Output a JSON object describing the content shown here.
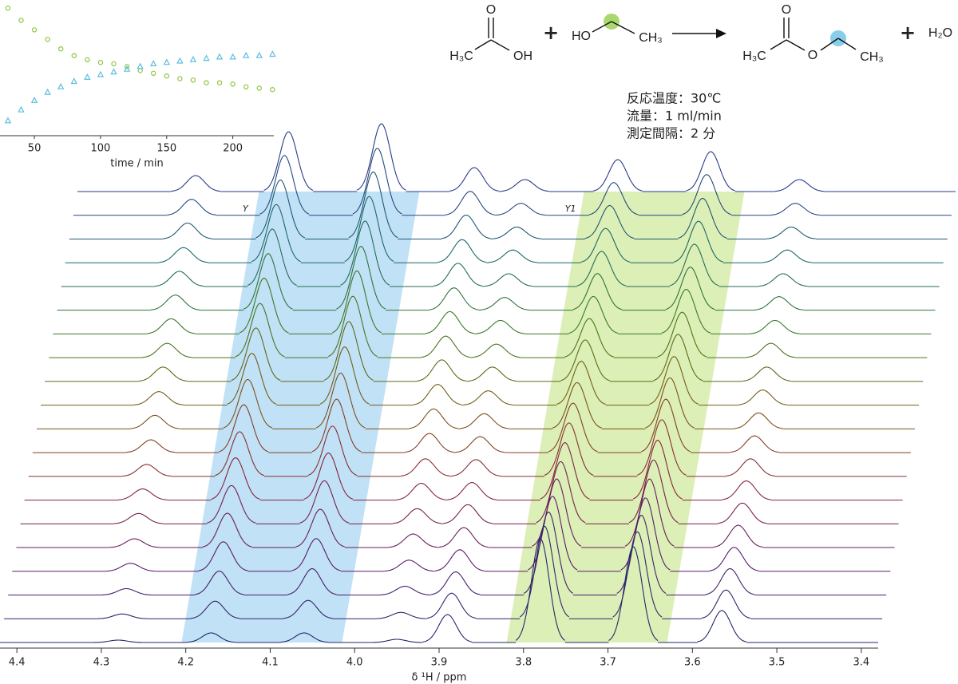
{
  "chart_data": [
    {
      "type": "scatter",
      "xlabel": "time / min",
      "xlim": [
        24,
        231
      ],
      "xticks": [
        50,
        100,
        150,
        200
      ],
      "ylim": [
        0,
        1
      ],
      "x": [
        30,
        40,
        50,
        60,
        70,
        80,
        90,
        100,
        110,
        120,
        130,
        140,
        150,
        160,
        170,
        180,
        190,
        200,
        210,
        220,
        230
      ],
      "series": [
        {
          "color": "#8dc63f",
          "marker": "circle",
          "values": [
            0.94,
            0.85,
            0.78,
            0.71,
            0.64,
            0.59,
            0.56,
            0.54,
            0.53,
            0.51,
            0.48,
            0.46,
            0.44,
            0.42,
            0.41,
            0.39,
            0.39,
            0.38,
            0.36,
            0.35,
            0.34
          ]
        },
        {
          "color": "#5bbde0",
          "marker": "triangle",
          "values": [
            0.11,
            0.19,
            0.26,
            0.32,
            0.36,
            0.4,
            0.43,
            0.45,
            0.47,
            0.49,
            0.51,
            0.53,
            0.54,
            0.55,
            0.56,
            0.57,
            0.58,
            0.58,
            0.59,
            0.59,
            0.6
          ]
        }
      ]
    },
    {
      "type": "waterfall",
      "xlabel": "δ ¹H / ppm",
      "xlim": [
        4.42,
        3.38
      ],
      "xticks": [
        4.4,
        4.3,
        4.2,
        4.1,
        {
          "value": 4,
          "label": "4.0"
        },
        3.9,
        3.8,
        3.7,
        3.6,
        3.5,
        3.4
      ],
      "x": [
        4.28,
        4.17,
        4.06,
        3.95,
        3.89,
        3.78,
        3.67,
        3.565
      ],
      "colormap": [
        "#22286a",
        "#5a1a6a",
        "#8a2438",
        "#7a5a14",
        "#3e7a1e",
        "#1a6a66",
        "#2a3a8a"
      ],
      "regions": [
        {
          "label": "Y",
          "range": [
            4.205,
            4.015
          ],
          "color": "#8ec8ee"
        },
        {
          "label": "Y1",
          "range": [
            3.82,
            3.63
          ],
          "color": "#bfe27a"
        }
      ],
      "series": [
        {
          "values": [
            3,
            12,
            12,
            4,
            35,
            130,
            120,
            40
          ]
        },
        {
          "values": [
            6,
            22,
            23,
            8,
            32,
            116,
            109,
            36
          ]
        },
        {
          "values": [
            8,
            30,
            33,
            11,
            29,
            104,
            100,
            33
          ]
        },
        {
          "values": [
            10,
            37,
            41,
            14,
            27,
            94,
            92,
            30
          ]
        },
        {
          "values": [
            11,
            43,
            48,
            17,
            25,
            86,
            86,
            28
          ]
        },
        {
          "values": [
            13,
            48,
            54,
            19,
            24,
            78,
            80,
            26
          ]
        },
        {
          "values": [
            14,
            53,
            59,
            21,
            22,
            72,
            75,
            24
          ]
        },
        {
          "values": [
            15,
            56,
            63,
            22,
            21,
            67,
            71,
            22
          ]
        },
        {
          "values": [
            16,
            60,
            67,
            24,
            20,
            62,
            67,
            21
          ]
        },
        {
          "values": [
            17,
            62,
            70,
            25,
            19,
            58,
            64,
            20
          ]
        },
        {
          "values": [
            17,
            65,
            73,
            26,
            18,
            55,
            61,
            19
          ]
        },
        {
          "values": [
            18,
            67,
            75,
            27,
            18,
            52,
            59,
            18
          ]
        },
        {
          "values": [
            18,
            68,
            77,
            27,
            17,
            49,
            57,
            18
          ]
        },
        {
          "values": [
            19,
            70,
            79,
            28,
            17,
            47,
            56,
            17
          ]
        },
        {
          "values": [
            19,
            71,
            80,
            28,
            16,
            46,
            54,
            17
          ]
        },
        {
          "values": [
            19,
            72,
            82,
            29,
            16,
            44,
            53,
            16
          ]
        },
        {
          "values": [
            19,
            73,
            83,
            29,
            16,
            43,
            52,
            16
          ]
        },
        {
          "values": [
            20,
            74,
            84,
            30,
            15,
            42,
            51,
            15
          ]
        },
        {
          "values": [
            20,
            75,
            84,
            30,
            15,
            41,
            51,
            15
          ]
        },
        {
          "values": [
            20,
            75,
            85,
            30,
            15,
            40,
            50,
            15
          ]
        }
      ]
    }
  ],
  "reaction": {
    "labels": [
      "O",
      "H₃C",
      "OH",
      "+",
      "HO",
      "CH₃",
      "O",
      "H₃C",
      "O",
      "CH₃",
      "+",
      "H₂O"
    ]
  },
  "conditions": [
    "反応温度：30℃",
    "流量：1 ml/min",
    "測定間隔：2 分"
  ]
}
